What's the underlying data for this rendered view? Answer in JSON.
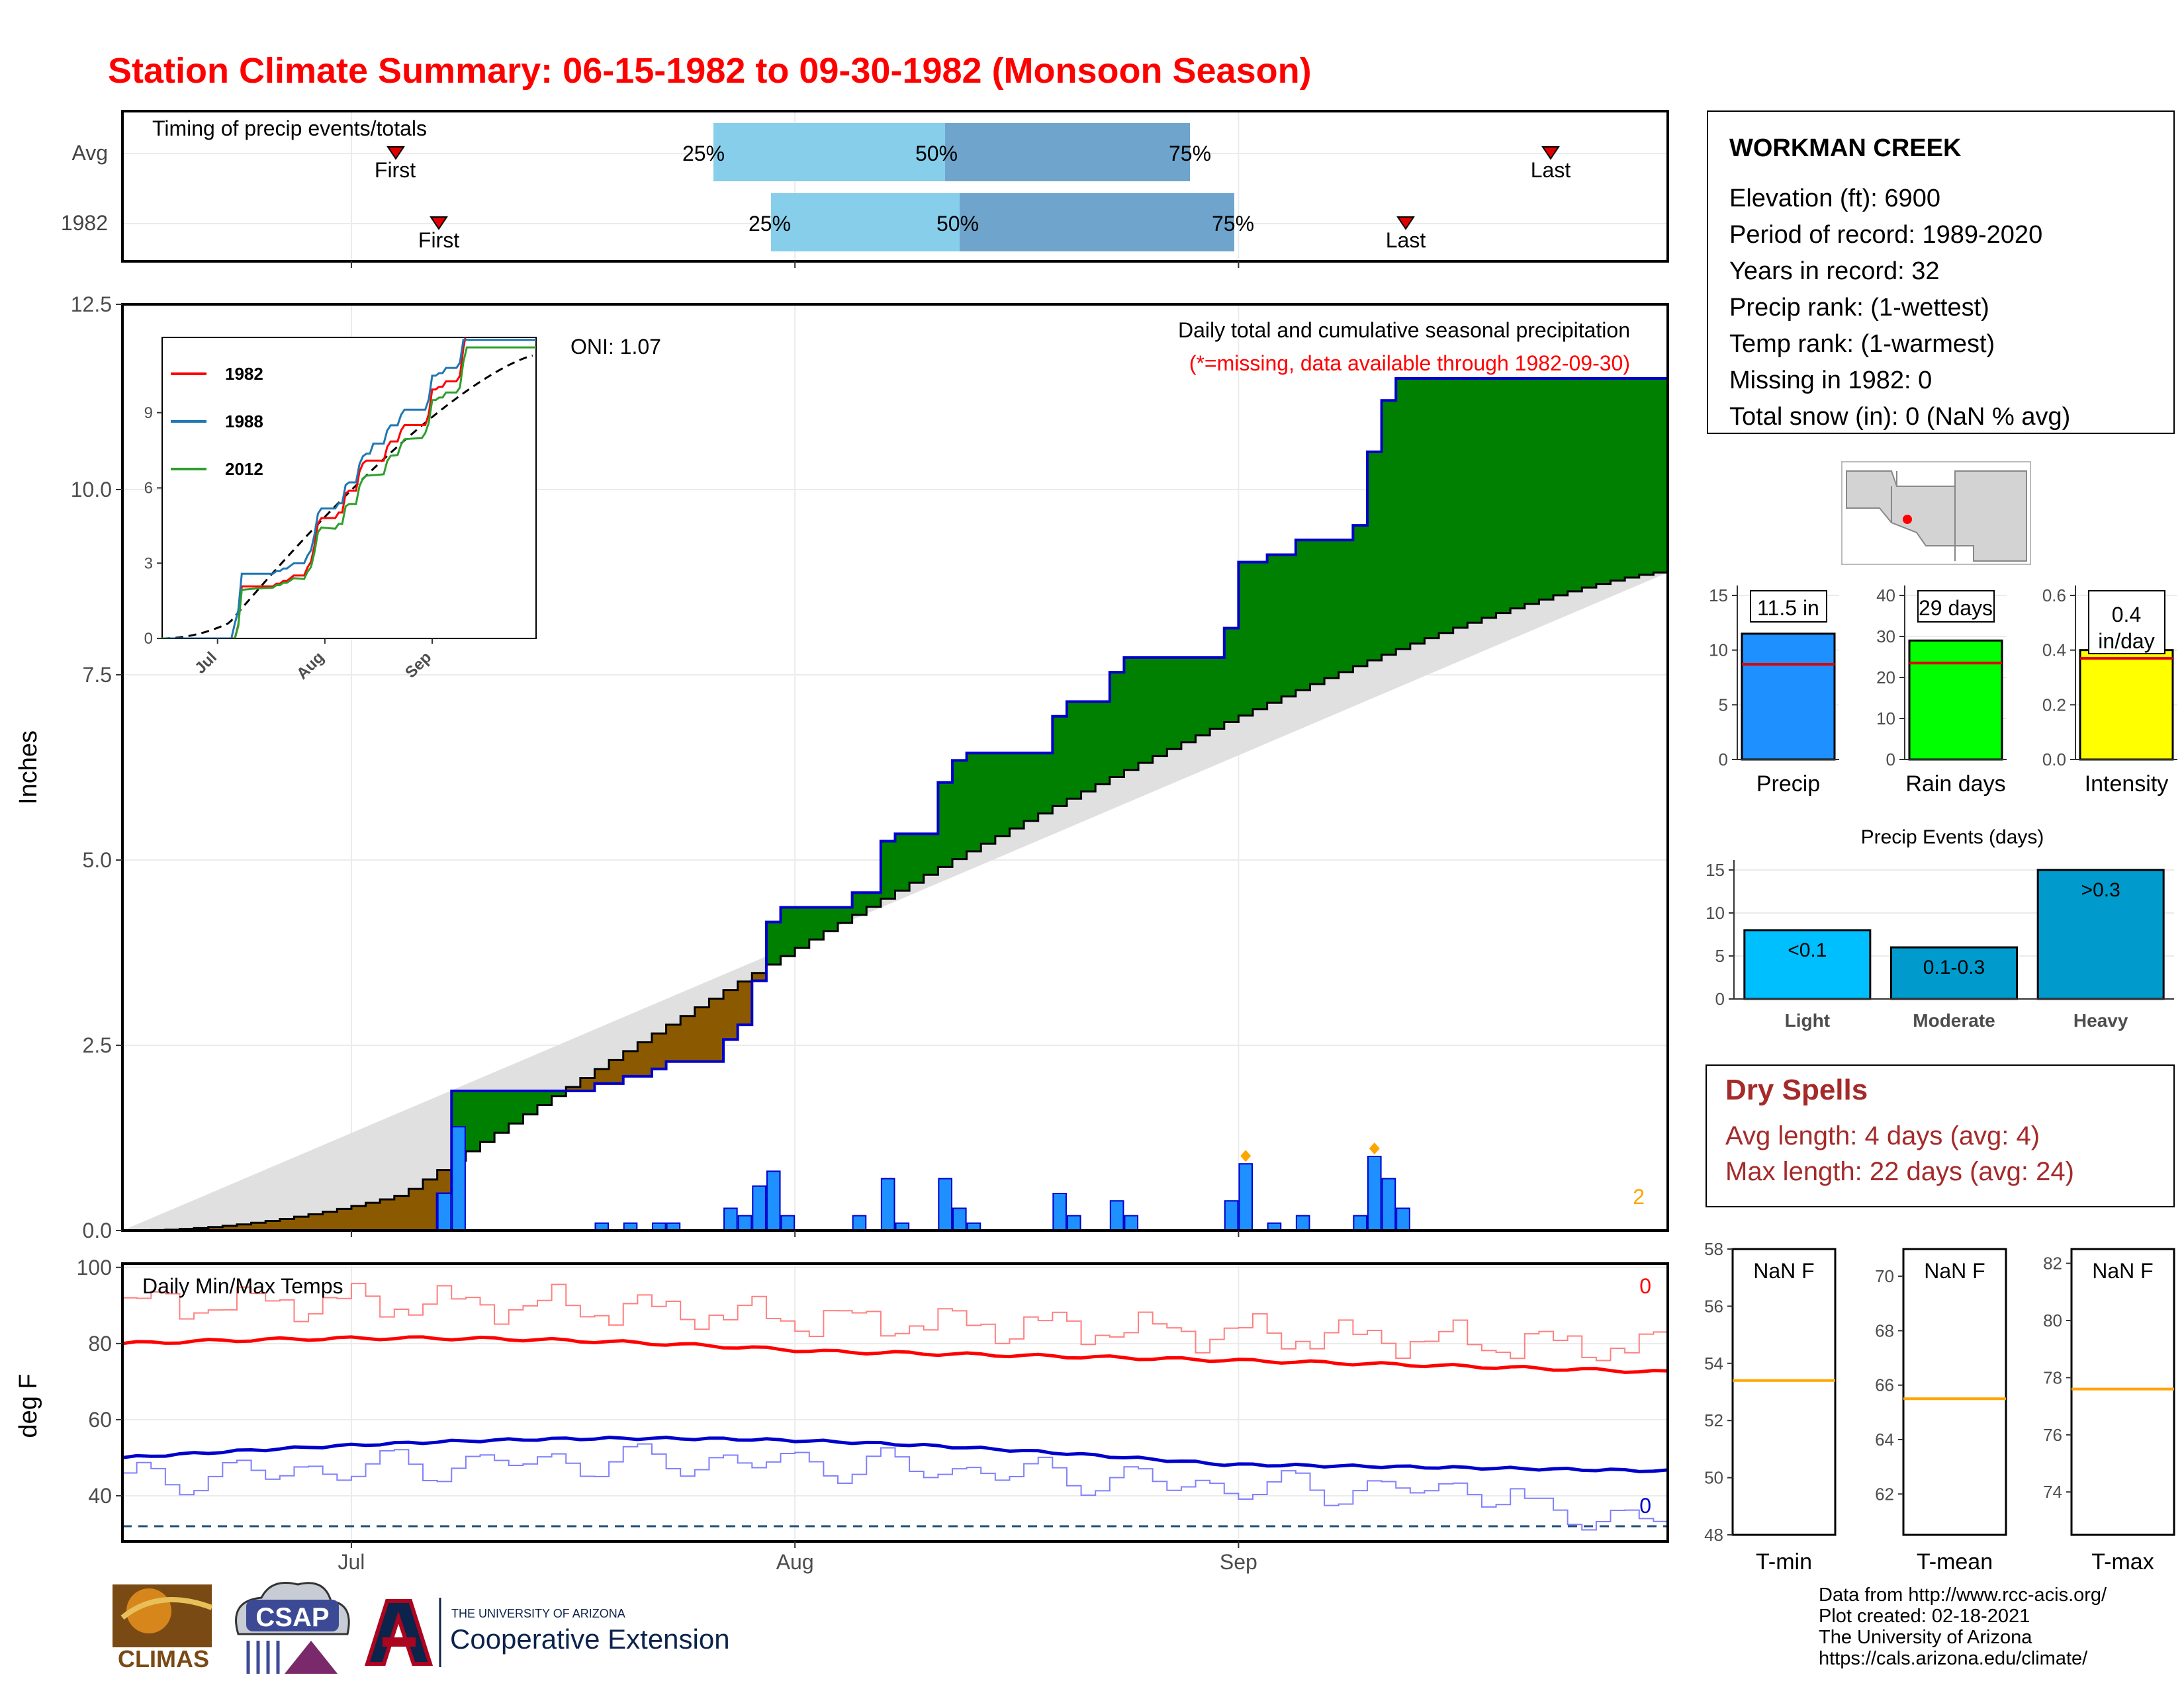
{
  "title": "Station Climate Summary: 06-15-1982 to 09-30-1982 (Monsoon Season)",
  "colors": {
    "title": "#ff0000",
    "precip_bar": "#1e90ff",
    "precip_outline": "#0000cd",
    "above_avg": "#008000",
    "below_avg": "#8b5a00",
    "normal_fill": "#e0e0e0",
    "tmax": "#ff0000",
    "tmin": "#0000cd",
    "quartile_light": "#87ceeb",
    "quartile_dark": "#6fa5cc",
    "rain_days": "#00ff00",
    "intensity": "#ffff00",
    "events": "#009acd",
    "events_light": "#00bfff",
    "dry_spells": "#a52a2a",
    "normal_line": "#ffa500"
  },
  "timing": {
    "label": "Timing of precip events/totals",
    "rows": [
      "Avg",
      "1982"
    ],
    "first_label": "First",
    "last_label": "Last",
    "q25_label": "25%",
    "q50_label": "50%",
    "q75_label": "75%"
  },
  "station": {
    "name": "WORKMAN CREEK",
    "lines": [
      "Elevation (ft): 6900",
      "Period of record: 1989-2020",
      "Years in record: 32",
      "Precip rank:  (1-wettest)",
      "Temp rank:  (1-warmest)",
      "Missing in 1982: 0",
      "Total snow (in): 0 (NaN % avg)"
    ]
  },
  "main": {
    "ylabel": "Inches",
    "yticks": [
      "0.0",
      "2.5",
      "5.0",
      "7.5",
      "10.0",
      "12.5"
    ],
    "xticks": [
      "Jul",
      "Aug",
      "Sep"
    ],
    "oni": "ONI: 1.07",
    "note1": "Daily total and cumulative seasonal precipitation",
    "note2": "(*=missing, data available through 1982-09-30)",
    "corner": "2"
  },
  "inset": {
    "yticks": [
      "0",
      "3",
      "6",
      "9"
    ],
    "xticks": [
      "Jul",
      "Aug",
      "Sep"
    ],
    "legend": [
      "1982",
      "1988",
      "2012"
    ],
    "colors": [
      "#ff0000",
      "#1f77b4",
      "#2ca02c"
    ]
  },
  "temps": {
    "label": "Daily Min/Max Temps",
    "ylabel": "deg F",
    "yticks": [
      "40",
      "60",
      "80",
      "100"
    ],
    "missing_max": "0",
    "missing_min": "0"
  },
  "summary_bars": [
    {
      "label": "Precip",
      "text": "11.5 in",
      "yticks": [
        "0",
        "5",
        "10",
        "15"
      ]
    },
    {
      "label": "Rain days",
      "text": "29 days",
      "yticks": [
        "0",
        "10",
        "20",
        "30",
        "40"
      ]
    },
    {
      "label": "Intensity",
      "text1": "0.4",
      "text2": "in/day",
      "yticks": [
        "0.0",
        "0.2",
        "0.4",
        "0.6"
      ]
    }
  ],
  "events": {
    "title": "Precip Events (days)",
    "yticks": [
      "0",
      "5",
      "10",
      "15"
    ],
    "categories": [
      "Light",
      "Moderate",
      "Heavy"
    ],
    "labels": [
      "<0.1",
      "0.1-0.3",
      ">0.3"
    ]
  },
  "dry_spells": {
    "title": "Dry Spells",
    "line1": "Avg length: 4 days (avg: 4)",
    "line2": "Max length: 22 days (avg: 24)"
  },
  "temp_boxes": [
    {
      "label": "T-min",
      "text": "NaN F",
      "yticks": [
        "48",
        "50",
        "52",
        "54",
        "56",
        "58"
      ]
    },
    {
      "label": "T-mean",
      "text": "NaN F",
      "yticks": [
        "62",
        "64",
        "66",
        "68",
        "70"
      ]
    },
    {
      "label": "T-max",
      "text": "NaN F",
      "yticks": [
        "74",
        "76",
        "78",
        "80",
        "82"
      ]
    }
  ],
  "credits": [
    "Data from http://www.rcc-acis.org/",
    "Plot created: 02-18-2021",
    "The University of Arizona",
    "https://cals.arizona.edu/climate/"
  ],
  "logos": {
    "climas": "CLIMAS",
    "csap": "CSAP",
    "ua_top": "THE UNIVERSITY OF ARIZONA",
    "ua_main": "Cooperative Extension"
  },
  "chart_data": {
    "type": "area",
    "title": "Station Climate Summary: 06-15-1982 to 09-30-1982 (Monsoon Season)",
    "ylabel": "Inches",
    "ylim": [
      0,
      12.5
    ],
    "x_range": [
      "1982-06-15",
      "1982-09-30"
    ],
    "total_precip_in": 11.5,
    "avg_cumulative_end_in": 8.9,
    "daily_precip": [
      {
        "date": "1982-07-07",
        "in": 0.5
      },
      {
        "date": "1982-07-08",
        "in": 1.4
      },
      {
        "date": "1982-07-18",
        "in": 0.1
      },
      {
        "date": "1982-07-20",
        "in": 0.1
      },
      {
        "date": "1982-07-22",
        "in": 0.1
      },
      {
        "date": "1982-07-23",
        "in": 0.1
      },
      {
        "date": "1982-07-27",
        "in": 0.3
      },
      {
        "date": "1982-07-28",
        "in": 0.2
      },
      {
        "date": "1982-07-29",
        "in": 0.6
      },
      {
        "date": "1982-07-30",
        "in": 0.8
      },
      {
        "date": "1982-07-31",
        "in": 0.2
      },
      {
        "date": "1982-08-05",
        "in": 0.2
      },
      {
        "date": "1982-08-07",
        "in": 0.7
      },
      {
        "date": "1982-08-08",
        "in": 0.1
      },
      {
        "date": "1982-08-11",
        "in": 0.7
      },
      {
        "date": "1982-08-12",
        "in": 0.3
      },
      {
        "date": "1982-08-13",
        "in": 0.1
      },
      {
        "date": "1982-08-19",
        "in": 0.5
      },
      {
        "date": "1982-08-20",
        "in": 0.2
      },
      {
        "date": "1982-08-23",
        "in": 0.4
      },
      {
        "date": "1982-08-24",
        "in": 0.2
      },
      {
        "date": "1982-08-31",
        "in": 0.4
      },
      {
        "date": "1982-09-01",
        "in": 0.9
      },
      {
        "date": "1982-09-03",
        "in": 0.1
      },
      {
        "date": "1982-09-05",
        "in": 0.2
      },
      {
        "date": "1982-09-09",
        "in": 0.2
      },
      {
        "date": "1982-09-10",
        "in": 1.0
      },
      {
        "date": "1982-09-11",
        "in": 0.7
      },
      {
        "date": "1982-09-12",
        "in": 0.3
      }
    ],
    "summary": {
      "precip_in": 11.5,
      "precip_avg_in": 8.7,
      "rain_days": 29,
      "rain_days_avg": 23.5,
      "intensity_in_per_day": 0.4,
      "intensity_avg": 0.37
    },
    "precip_events_days": {
      "Light": 8,
      "Moderate": 6,
      "Heavy": 15
    },
    "temp_normals_F": {
      "T-min": 53.4,
      "T-mean": 65.5,
      "T-max": 77.6
    }
  }
}
